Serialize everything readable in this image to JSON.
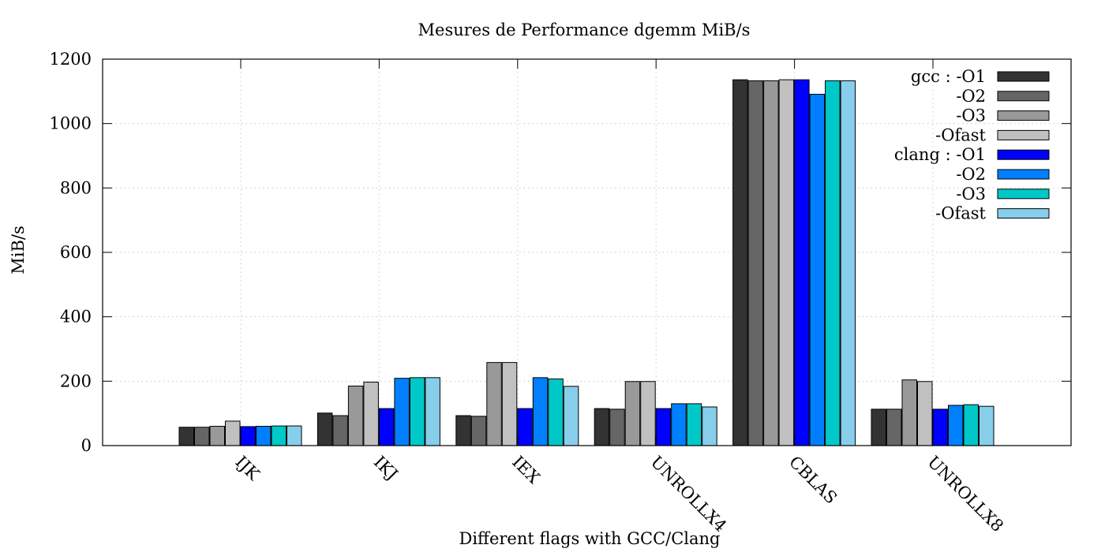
{
  "chart_data": {
    "type": "bar",
    "title": "Mesures de Performance dgemm MiB/s",
    "xlabel": "Different flags with GCC/Clang",
    "ylabel": "MiB/s",
    "ylim": [
      0,
      1200
    ],
    "yticks": [
      0,
      200,
      400,
      600,
      800,
      1000,
      1200
    ],
    "grid": true,
    "legend_position": "top-right",
    "categories": [
      "IJK",
      "IKJ",
      "IEX",
      "UNROLLX4",
      "CBLAS",
      "UNROLLX8"
    ],
    "series": [
      {
        "name": "gcc : -O1",
        "color": "#333333",
        "values": [
          57,
          101,
          93,
          115,
          1136,
          113
        ]
      },
      {
        "name": "-O2",
        "color": "#666666",
        "values": [
          57,
          93,
          91,
          113,
          1133,
          113
        ]
      },
      {
        "name": "-O3",
        "color": "#999999",
        "values": [
          60,
          185,
          258,
          199,
          1133,
          204
        ]
      },
      {
        "name": "-Ofast",
        "color": "#c0c0c0",
        "values": [
          76,
          197,
          258,
          199,
          1136,
          199
        ]
      },
      {
        "name": "clang : -O1",
        "color": "#0000ff",
        "values": [
          59,
          115,
          115,
          115,
          1136,
          113
        ]
      },
      {
        "name": "-O2",
        "color": "#0080ff",
        "values": [
          60,
          209,
          211,
          130,
          1091,
          125
        ]
      },
      {
        "name": "-O3",
        "color": "#00c8c8",
        "values": [
          61,
          211,
          207,
          130,
          1133,
          127
        ]
      },
      {
        "name": "-Ofast",
        "color": "#87ceeb",
        "values": [
          61,
          211,
          184,
          120,
          1133,
          122
        ]
      }
    ]
  }
}
